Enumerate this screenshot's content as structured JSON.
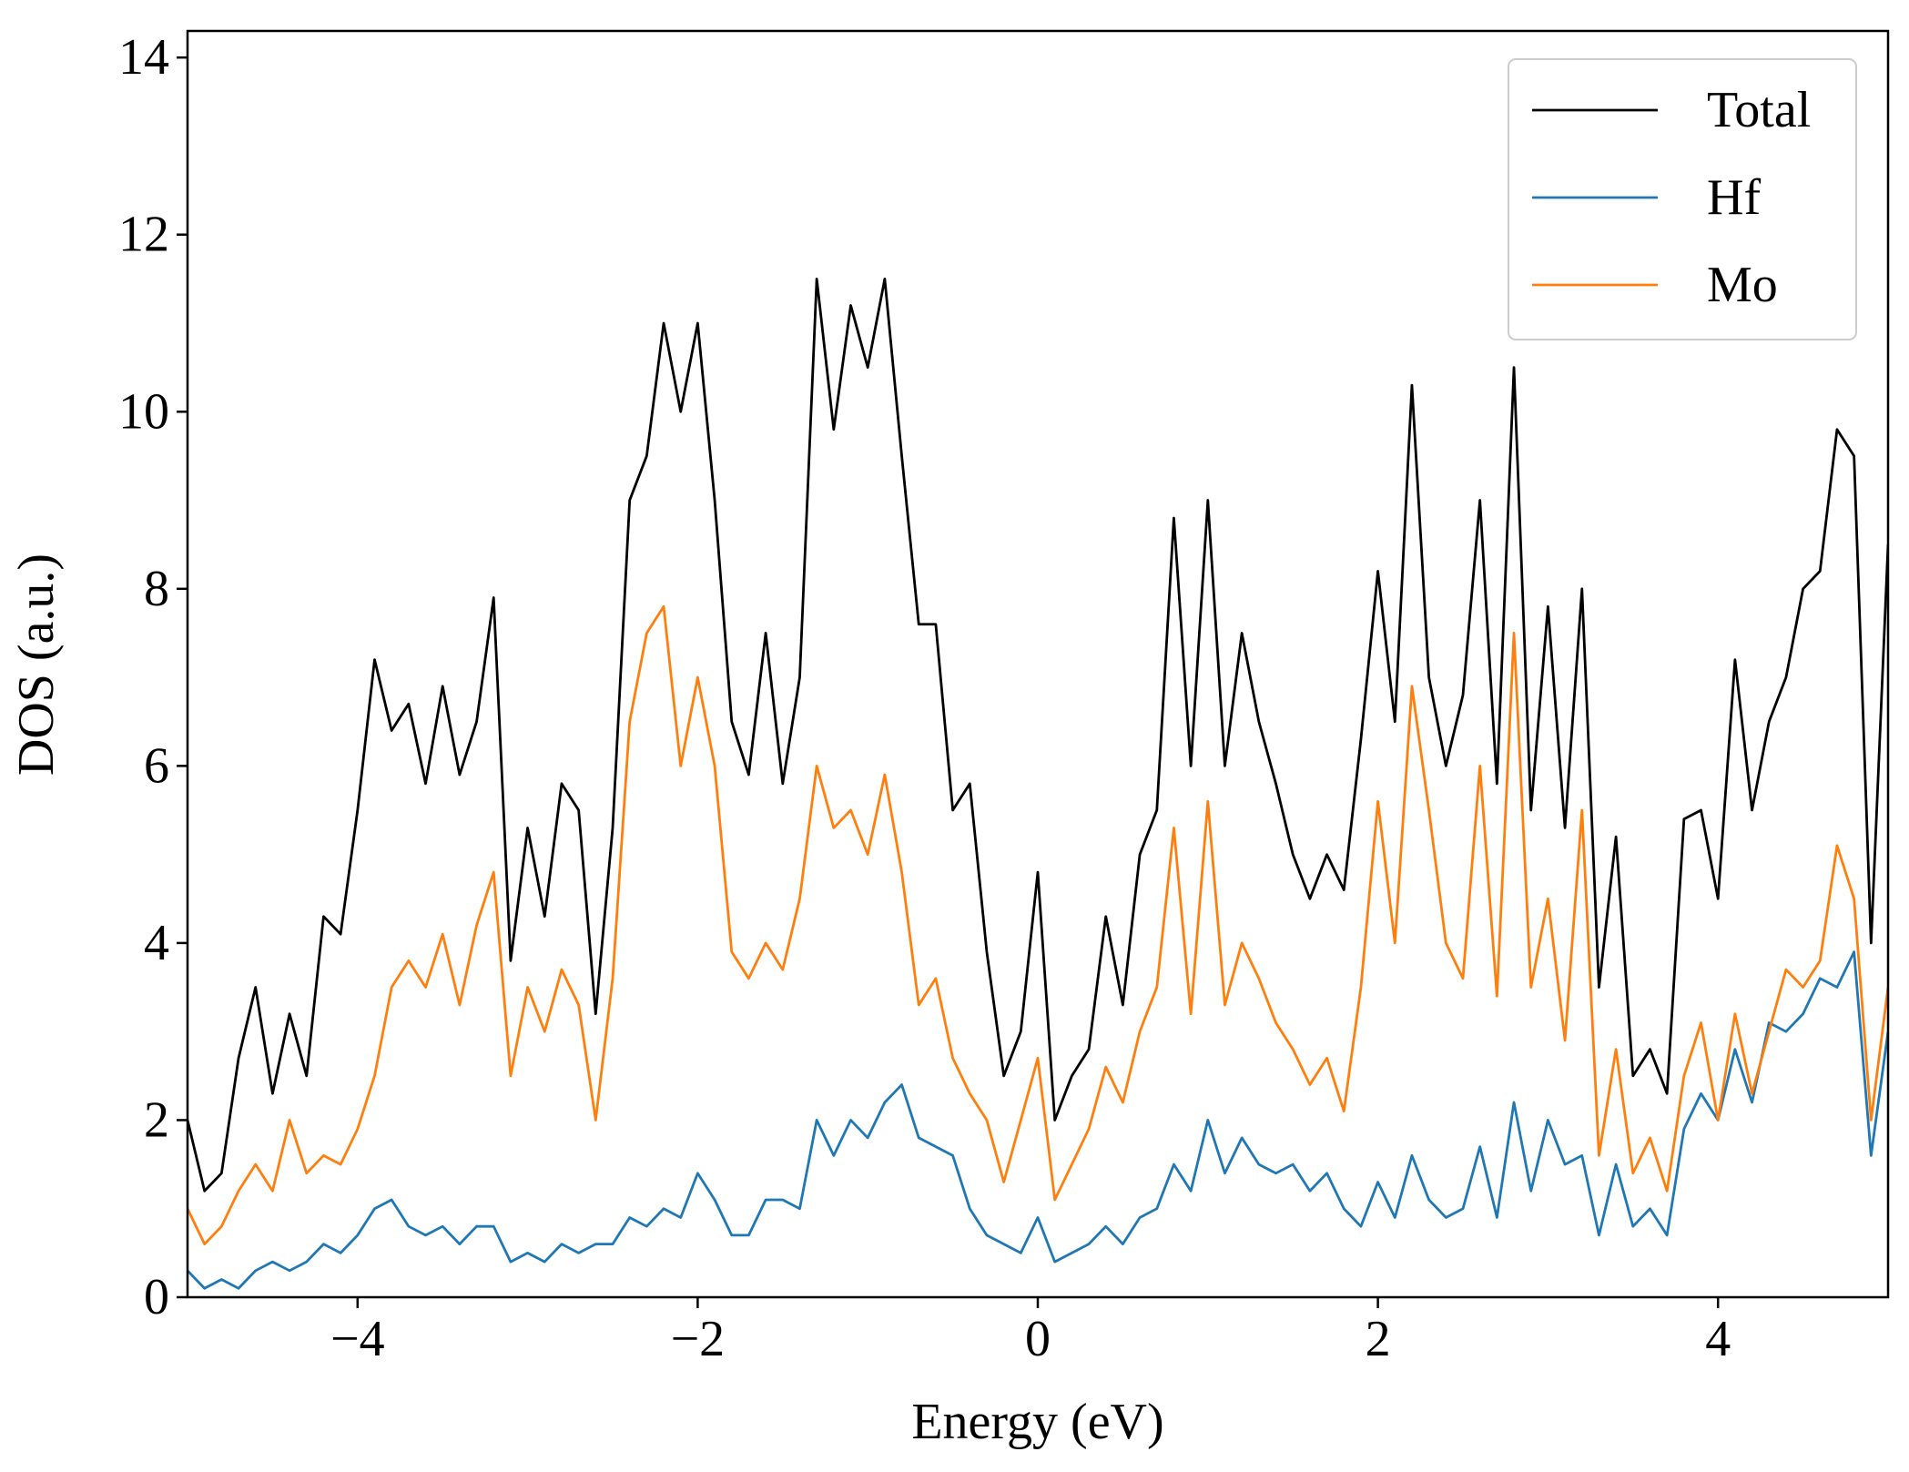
{
  "chart_data": {
    "type": "line",
    "xlabel": "Energy (eV)",
    "ylabel": "DOS (a.u.)",
    "x": [
      -5.0,
      -4.9,
      -4.8,
      -4.7,
      -4.6,
      -4.5,
      -4.4,
      -4.3,
      -4.2,
      -4.1,
      -4.0,
      -3.9,
      -3.8,
      -3.7,
      -3.6,
      -3.5,
      -3.4,
      -3.3,
      -3.2,
      -3.1,
      -3.0,
      -2.9,
      -2.8,
      -2.7,
      -2.6,
      -2.5,
      -2.4,
      -2.3,
      -2.2,
      -2.1,
      -2.0,
      -1.9,
      -1.8,
      -1.7,
      -1.6,
      -1.5,
      -1.4,
      -1.3,
      -1.2,
      -1.1,
      -1.0,
      -0.9,
      -0.8,
      -0.7,
      -0.6,
      -0.5,
      -0.4,
      -0.3,
      -0.2,
      -0.1,
      0.0,
      0.1,
      0.2,
      0.3,
      0.4,
      0.5,
      0.6,
      0.7,
      0.8,
      0.9,
      1.0,
      1.1,
      1.2,
      1.3,
      1.4,
      1.5,
      1.6,
      1.7,
      1.8,
      1.9,
      2.0,
      2.1,
      2.2,
      2.3,
      2.4,
      2.5,
      2.6,
      2.7,
      2.8,
      2.9,
      3.0,
      3.1,
      3.2,
      3.3,
      3.4,
      3.5,
      3.6,
      3.7,
      3.8,
      3.9,
      4.0,
      4.1,
      4.2,
      4.3,
      4.4,
      4.5,
      4.6,
      4.7,
      4.8,
      4.9,
      5.0
    ],
    "series": [
      {
        "name": "Total",
        "color": "#000000",
        "values": [
          2.0,
          1.2,
          1.4,
          2.7,
          3.5,
          2.3,
          3.2,
          2.5,
          4.3,
          4.1,
          5.5,
          7.2,
          6.4,
          6.7,
          5.8,
          6.9,
          5.9,
          6.5,
          7.9,
          3.8,
          5.3,
          4.3,
          5.8,
          5.5,
          3.2,
          5.3,
          9.0,
          9.5,
          11.0,
          10.0,
          11.0,
          9.0,
          6.5,
          5.9,
          7.5,
          5.8,
          7.0,
          11.5,
          9.8,
          11.2,
          10.5,
          11.5,
          9.5,
          7.6,
          7.6,
          5.5,
          5.8,
          3.9,
          2.5,
          3.0,
          4.8,
          2.0,
          2.5,
          2.8,
          4.3,
          3.3,
          5.0,
          5.5,
          8.8,
          6.0,
          9.0,
          6.0,
          7.5,
          6.5,
          5.8,
          5.0,
          4.5,
          5.0,
          4.6,
          6.3,
          8.2,
          6.5,
          10.3,
          7.0,
          6.0,
          6.8,
          9.0,
          5.8,
          10.5,
          5.5,
          7.8,
          5.3,
          8.0,
          3.5,
          5.2,
          2.5,
          2.8,
          2.3,
          5.4,
          5.5,
          4.5,
          7.2,
          5.5,
          6.5,
          7.0,
          8.0,
          8.2,
          9.8,
          9.5,
          4.0,
          8.5
        ]
      },
      {
        "name": "Hf",
        "color": "#1f77b4",
        "values": [
          0.3,
          0.1,
          0.2,
          0.1,
          0.3,
          0.4,
          0.3,
          0.4,
          0.6,
          0.5,
          0.7,
          1.0,
          1.1,
          0.8,
          0.7,
          0.8,
          0.6,
          0.8,
          0.8,
          0.4,
          0.5,
          0.4,
          0.6,
          0.5,
          0.6,
          0.6,
          0.9,
          0.8,
          1.0,
          0.9,
          1.4,
          1.1,
          0.7,
          0.7,
          1.1,
          1.1,
          1.0,
          2.0,
          1.6,
          2.0,
          1.8,
          2.2,
          2.4,
          1.8,
          1.7,
          1.6,
          1.0,
          0.7,
          0.6,
          0.5,
          0.9,
          0.4,
          0.5,
          0.6,
          0.8,
          0.6,
          0.9,
          1.0,
          1.5,
          1.2,
          2.0,
          1.4,
          1.8,
          1.5,
          1.4,
          1.5,
          1.2,
          1.4,
          1.0,
          0.8,
          1.3,
          0.9,
          1.6,
          1.1,
          0.9,
          1.0,
          1.7,
          0.9,
          2.2,
          1.2,
          2.0,
          1.5,
          1.6,
          0.7,
          1.5,
          0.8,
          1.0,
          0.7,
          1.9,
          2.3,
          2.0,
          2.8,
          2.2,
          3.1,
          3.0,
          3.2,
          3.6,
          3.5,
          3.9,
          1.6,
          3.0
        ]
      },
      {
        "name": "Mo",
        "color": "#ff7f0e",
        "values": [
          1.0,
          0.6,
          0.8,
          1.2,
          1.5,
          1.2,
          2.0,
          1.4,
          1.6,
          1.5,
          1.9,
          2.5,
          3.5,
          3.8,
          3.5,
          4.1,
          3.3,
          4.2,
          4.8,
          2.5,
          3.5,
          3.0,
          3.7,
          3.3,
          2.0,
          3.6,
          6.5,
          7.5,
          7.8,
          6.0,
          7.0,
          6.0,
          3.9,
          3.6,
          4.0,
          3.7,
          4.5,
          6.0,
          5.3,
          5.5,
          5.0,
          5.9,
          4.8,
          3.3,
          3.6,
          2.7,
          2.3,
          2.0,
          1.3,
          2.0,
          2.7,
          1.1,
          1.5,
          1.9,
          2.6,
          2.2,
          3.0,
          3.5,
          5.3,
          3.2,
          5.6,
          3.3,
          4.0,
          3.6,
          3.1,
          2.8,
          2.4,
          2.7,
          2.1,
          3.5,
          5.6,
          4.0,
          6.9,
          5.5,
          4.0,
          3.6,
          6.0,
          3.4,
          7.5,
          3.5,
          4.5,
          2.9,
          5.5,
          1.6,
          2.8,
          1.4,
          1.8,
          1.2,
          2.5,
          3.1,
          2.0,
          3.2,
          2.3,
          3.0,
          3.7,
          3.5,
          3.8,
          5.1,
          4.5,
          2.0,
          3.5
        ]
      }
    ],
    "xlim": [
      -5,
      5
    ],
    "ylim": [
      0,
      14.3
    ],
    "xticks": [
      {
        "value": -4,
        "label": "−4"
      },
      {
        "value": -2,
        "label": "−2"
      },
      0,
      2,
      4
    ],
    "yticks": [
      0,
      2,
      4,
      6,
      8,
      10,
      12,
      14
    ],
    "legend": "upper right"
  }
}
